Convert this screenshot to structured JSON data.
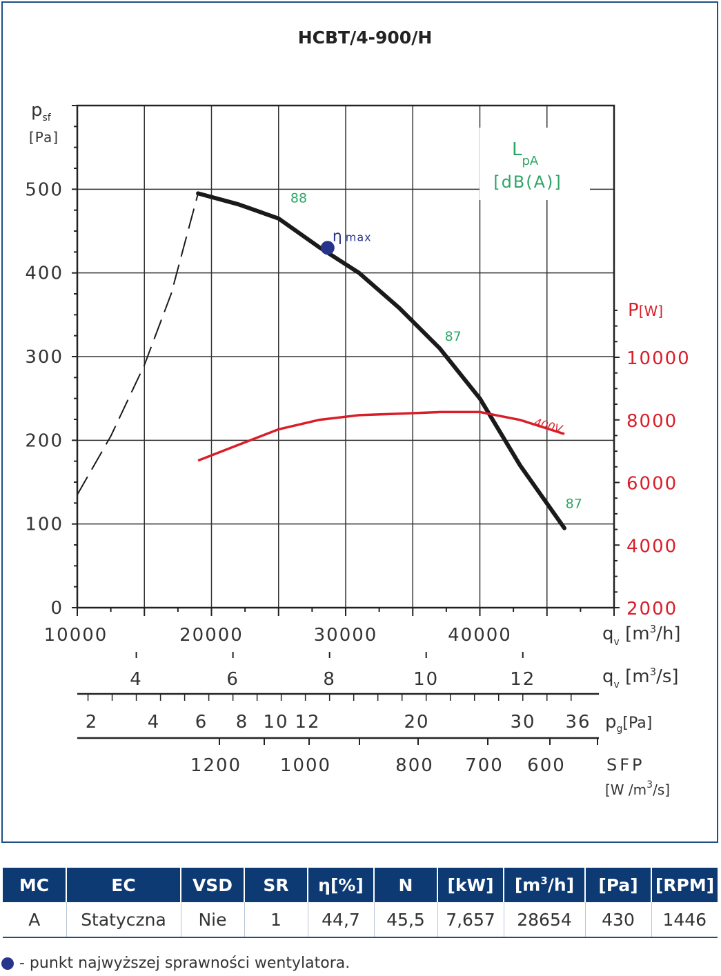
{
  "chart_data": {
    "type": "line",
    "title": "HCBT/4-900/H",
    "xlabel": "qv [m3/h]",
    "x_unit_html": [
      "q",
      "v",
      " [m",
      "3",
      "/h]"
    ],
    "xlim": [
      10000,
      50000
    ],
    "x_ticks": [
      10000,
      20000,
      30000,
      40000
    ],
    "y_label": [
      "p",
      "sf",
      "[Pa]"
    ],
    "ylim": [
      0,
      600
    ],
    "y_ticks": [
      0,
      100,
      200,
      300,
      400,
      500
    ],
    "power_axis": {
      "label": [
        "P",
        "[W]"
      ],
      "range": [
        2000,
        10000
      ],
      "ticks": [
        2000,
        4000,
        6000,
        8000,
        10000
      ]
    },
    "series": [
      {
        "role": "pressure-curve",
        "x": [
          19000,
          22000,
          25000,
          28000,
          31000,
          34000,
          37000,
          40000,
          43000,
          46300
        ],
        "y": [
          495,
          482,
          465,
          431,
          400,
          358,
          310,
          250,
          170,
          95
        ],
        "color": "#1a1a1a"
      },
      {
        "role": "pressure-curve-dashed",
        "x": [
          10000,
          12500,
          15000,
          17000,
          19000
        ],
        "y": [
          135,
          205,
          290,
          375,
          495
        ],
        "color": "#1a1a1a"
      },
      {
        "name": "400V",
        "role": "power-curve",
        "axis": "power",
        "x": [
          19000,
          22000,
          25000,
          28000,
          31000,
          34000,
          37000,
          40000,
          43000,
          46300
        ],
        "y": [
          6700,
          7200,
          7700,
          8000,
          8150,
          8200,
          8250,
          8250,
          8000,
          7550
        ],
        "color": "#d91e2a"
      }
    ],
    "efficiency_point": {
      "x": 28654,
      "y": 430,
      "label": "ηmax",
      "color": "#27348b"
    },
    "sound_labels": [
      {
        "text": "88",
        "x": 26500,
        "y": 480
      },
      {
        "text": "87",
        "x": 38000,
        "y": 315
      },
      {
        "text": "87",
        "x": 47000,
        "y": 115
      }
    ],
    "lpa_legend": [
      "L",
      "pA",
      "[dB(A)]"
    ],
    "secondary_scales": [
      {
        "label": [
          "q",
          "v",
          " [m",
          "3",
          "/s]"
        ],
        "ticks": [
          4,
          6,
          8,
          10,
          12
        ]
      },
      {
        "label": [
          "p",
          "g",
          "[Pa]"
        ],
        "ticks": [
          2,
          4,
          6,
          8,
          10,
          12,
          20,
          30,
          36
        ]
      },
      {
        "label": [
          "SFP",
          "[W /m",
          "3",
          "/s]"
        ],
        "ticks": [
          1200,
          1000,
          800,
          700,
          600
        ]
      }
    ],
    "grid": true
  },
  "table": {
    "headers": [
      "MC",
      "EC",
      "VSD",
      "SR",
      "η[%]",
      "N",
      "[kW]",
      "[m3/h]",
      "[Pa]",
      "[RPM]"
    ],
    "row": [
      "A",
      "Statyczna",
      "Nie",
      "1",
      "44,7",
      "45,5",
      "7,657",
      "28654",
      "430",
      "1446"
    ]
  },
  "footnote": "- punkt najwyższej sprawności wentylatora."
}
